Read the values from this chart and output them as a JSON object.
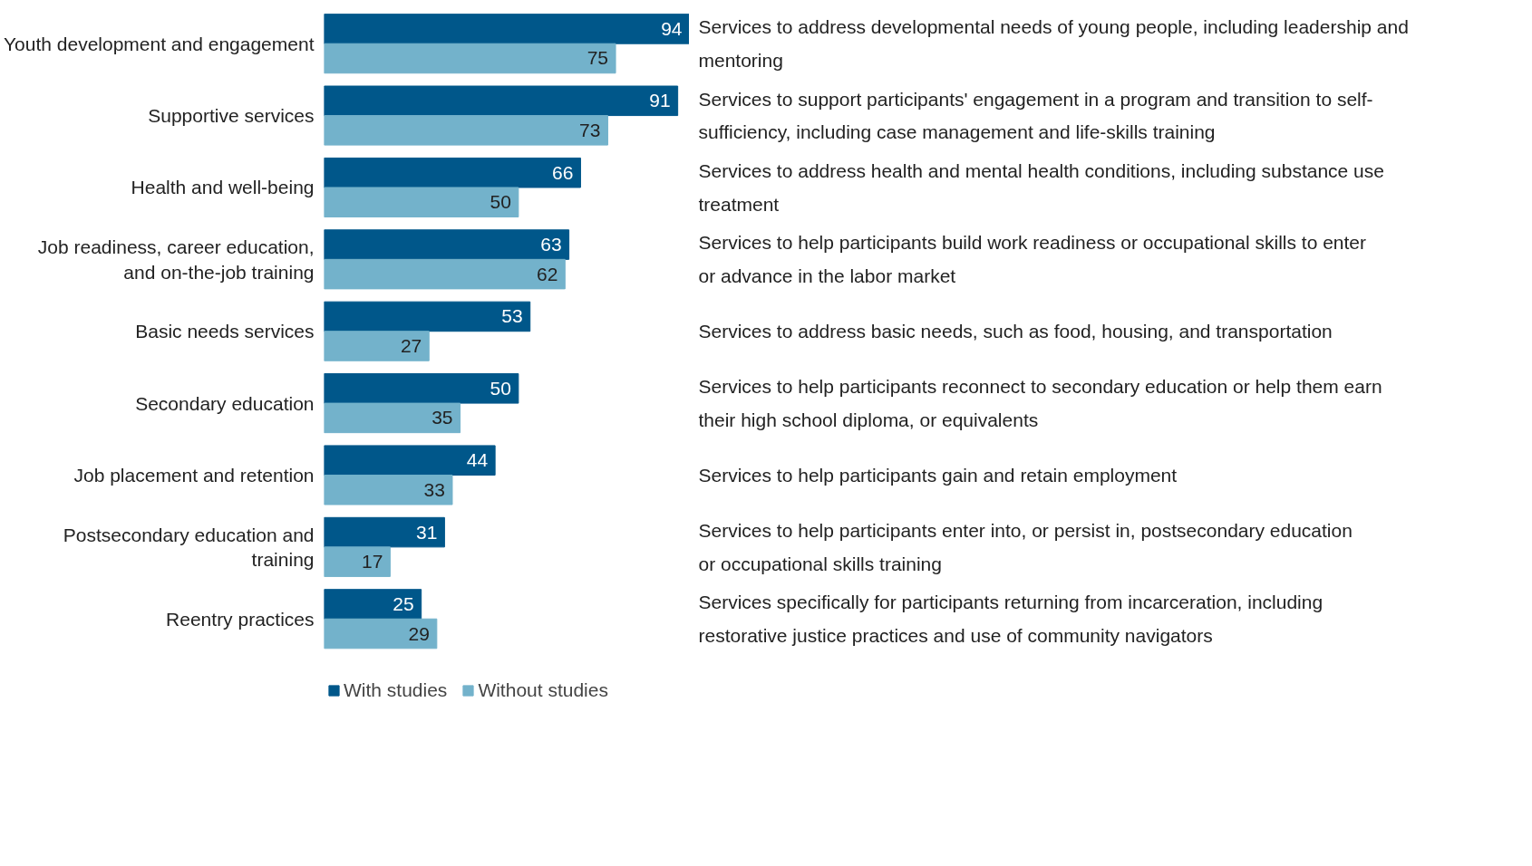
{
  "chart_data": {
    "type": "bar",
    "orientation": "horizontal",
    "categories": [
      "Youth development and engagement",
      "Supportive services",
      "Health and well-being",
      "Job readiness, career education, and on-the-job training",
      "Basic needs services",
      "Secondary education",
      "Job placement and retention",
      "Postsecondary education and training",
      "Reentry practices"
    ],
    "series": [
      {
        "name": "With studies",
        "color": "#00578a",
        "values": [
          94,
          91,
          66,
          63,
          53,
          50,
          44,
          31,
          25
        ]
      },
      {
        "name": "Without studies",
        "color": "#73b2cb",
        "values": [
          75,
          73,
          50,
          62,
          27,
          35,
          33,
          17,
          29
        ]
      }
    ],
    "annotations": [
      "Services to address developmental needs of young people, including leadership and mentoring",
      "Services to support participants' engagement in a program and transition to self-sufficiency, including case management and life-skills training",
      "Services to address health and mental health conditions, including substance use treatment",
      "Services to help participants build work readiness or occupational skills to enter or advance in the labor market",
      "Services to address basic needs, such as food, housing, and transportation",
      "Services to help participants reconnect to secondary education or help them earn their high school diploma, or equivalents",
      "Services to help participants gain and retain employment",
      "Services to help participants enter into, or persist in, postsecondary education or occupational skills training",
      "Services specifically for participants returning from incarceration, including restorative justice practices and use of community navigators"
    ],
    "data_labels": true,
    "legend": "bottom",
    "grid": false
  }
}
